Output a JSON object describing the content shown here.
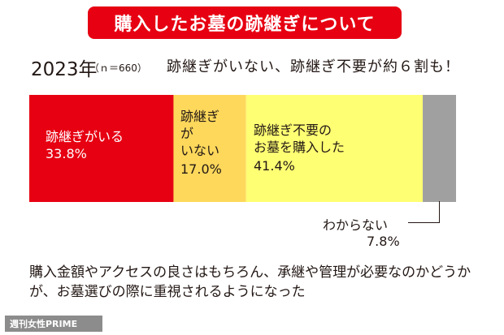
{
  "title": "購入したお墓の跡継ぎについて",
  "year": "2023年",
  "sample": "（ｎ＝660）",
  "headline": "跡継ぎがいない、跡継ぎ不要が約６割も！",
  "chart_data": {
    "type": "bar",
    "orientation": "horizontal-stacked",
    "categories": [
      "跡継ぎがいる",
      "跡継ぎがいない",
      "跡継ぎ不要のお墓を購入した",
      "わからない"
    ],
    "values": [
      33.8,
      17.0,
      41.4,
      7.8
    ],
    "unit": "%",
    "colors": [
      "#e60012",
      "#fdd85b",
      "#ffff73",
      "#a0a0a0"
    ]
  },
  "segments": [
    {
      "label_lines": [
        "跡継ぎがいる"
      ],
      "value": "33.8%"
    },
    {
      "label_lines": [
        "跡継ぎ",
        "が",
        "いない"
      ],
      "value": "17.0%"
    },
    {
      "label_lines": [
        "跡継ぎ不要の",
        "お墓を購入した"
      ],
      "value": "41.4%"
    },
    {
      "label_lines": [
        "わからない"
      ],
      "value": "7.8%"
    }
  ],
  "footer_note": "購入金額やアクセスの良さはもちろん、承継や管理が必要なのかどうかが、お墓選びの際に重視されるようになった",
  "brand": "週刊女性PRIME"
}
